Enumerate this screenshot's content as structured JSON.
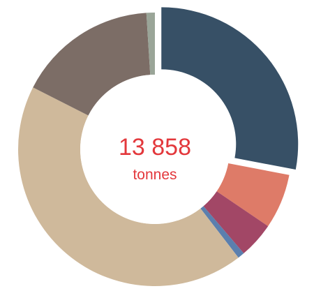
{
  "chart_data": {
    "type": "pie",
    "variant": "donut",
    "total_label": "13 858",
    "unit_label": "tonnes",
    "slices": [
      {
        "value": 3880,
        "color": "#375066",
        "exploded": true
      },
      {
        "value": 900,
        "color": "#de7b68"
      },
      {
        "value": 590,
        "color": "#a24766"
      },
      {
        "value": 110,
        "color": "#5b7fae"
      },
      {
        "value": 5950,
        "color": "#cfb99b"
      },
      {
        "value": 2290,
        "color": "#7c6d66"
      },
      {
        "value": 138,
        "color": "#9aa598"
      }
    ]
  }
}
